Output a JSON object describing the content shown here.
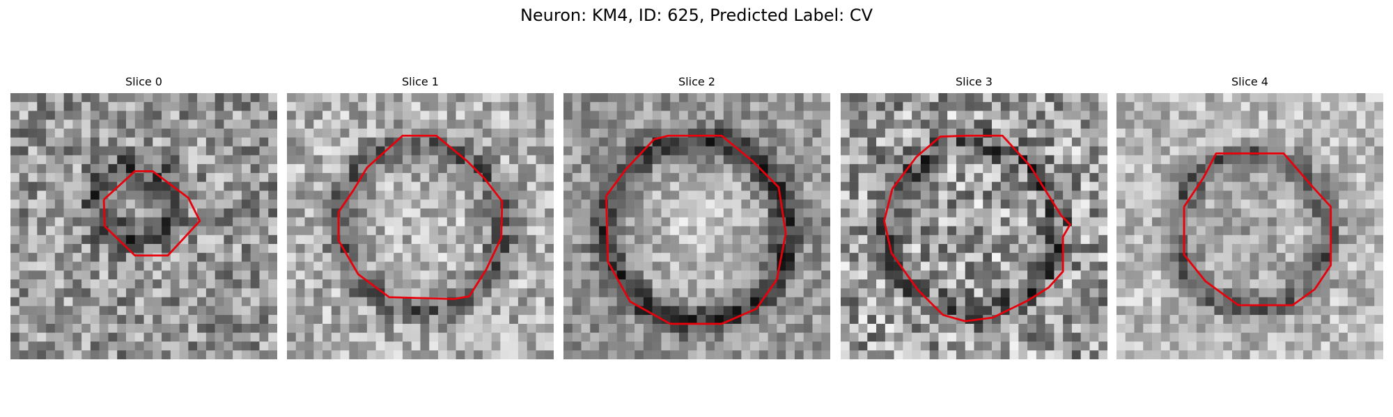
{
  "figure": {
    "title": "Neuron: KM4, ID: 625, Predicted Label: CV"
  },
  "panels": [
    {
      "title": "Slice 0",
      "contour": "small-irregular-octagon",
      "background": "mid-gray noisy"
    },
    {
      "title": "Slice 1",
      "contour": "large-octagon",
      "background": "light noisy"
    },
    {
      "title": "Slice 2",
      "contour": "large-octagon",
      "background": "bright center dark ring"
    },
    {
      "title": "Slice 3",
      "contour": "large-irregular-octagon",
      "background": "high-contrast noisy"
    },
    {
      "title": "Slice 4",
      "contour": "octagon",
      "background": "light with dark ring"
    }
  ],
  "colors": {
    "contour": "#e8000b",
    "background": "#ffffff"
  }
}
